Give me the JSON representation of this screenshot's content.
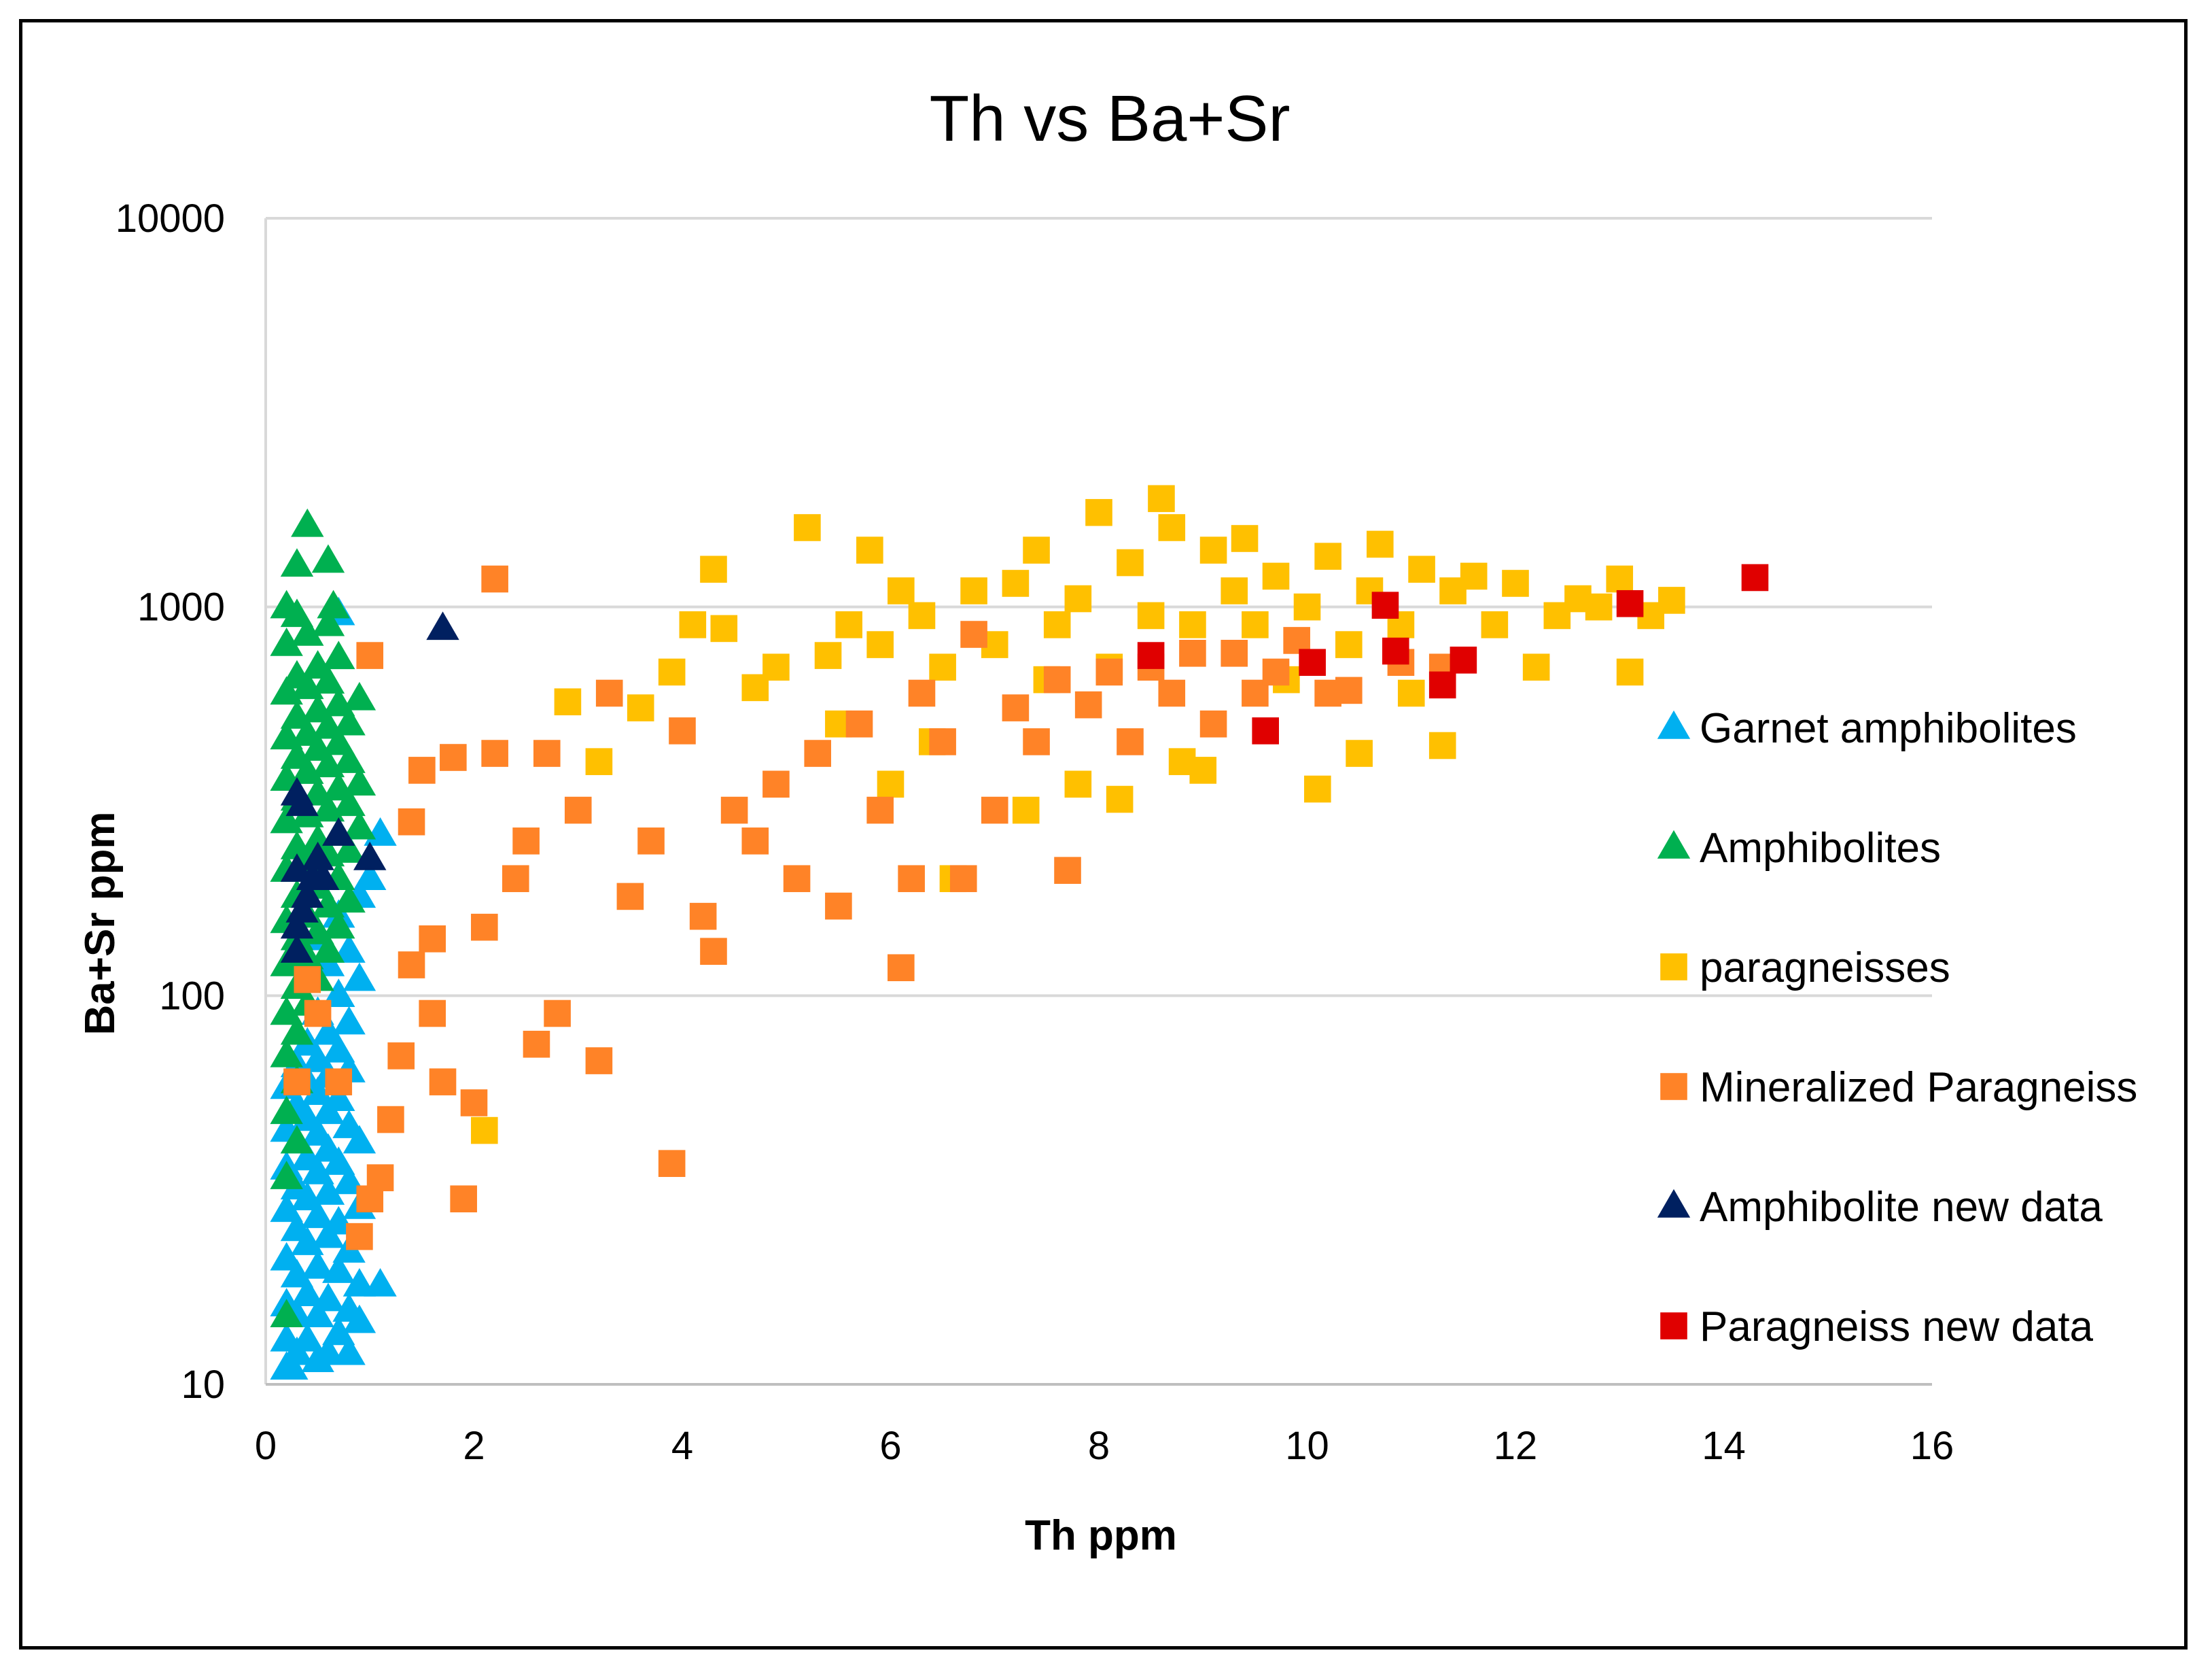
{
  "chart_data": {
    "type": "scatter",
    "title": "Th vs Ba+Sr",
    "xlabel": "Th ppm",
    "ylabel": "Ba+Sr ppm",
    "xlim": [
      0,
      16
    ],
    "ylim": [
      10,
      10000
    ],
    "yscale": "log",
    "x_ticks": [
      "0",
      "2",
      "4",
      "6",
      "8",
      "10",
      "12",
      "14",
      "16"
    ],
    "y_ticks": [
      "10",
      "100",
      "1000",
      "10000"
    ],
    "grid": "horizontal",
    "legend_position": "right",
    "series": [
      {
        "name": "Garnet amphibolites",
        "marker": "triangle",
        "color": "#00B0F0",
        "points": [
          [
            0.2,
            11
          ],
          [
            0.3,
            12
          ],
          [
            0.5,
            11.5
          ],
          [
            0.6,
            12
          ],
          [
            0.8,
            12
          ],
          [
            0.2,
            13
          ],
          [
            0.4,
            13
          ],
          [
            0.7,
            13.5
          ],
          [
            0.9,
            14.5
          ],
          [
            0.3,
            15
          ],
          [
            0.5,
            15
          ],
          [
            0.8,
            15.5
          ],
          [
            0.2,
            16
          ],
          [
            0.6,
            16.5
          ],
          [
            0.4,
            17
          ],
          [
            1.1,
            18
          ],
          [
            0.9,
            18
          ],
          [
            0.3,
            19
          ],
          [
            0.7,
            19.5
          ],
          [
            0.5,
            20
          ],
          [
            0.2,
            21
          ],
          [
            0.8,
            22
          ],
          [
            0.4,
            23
          ],
          [
            0.6,
            24
          ],
          [
            0.3,
            25
          ],
          [
            0.7,
            26
          ],
          [
            0.5,
            27
          ],
          [
            0.2,
            28
          ],
          [
            0.9,
            28.5
          ],
          [
            0.4,
            30
          ],
          [
            0.6,
            31
          ],
          [
            0.3,
            32
          ],
          [
            0.8,
            33
          ],
          [
            0.5,
            35
          ],
          [
            0.2,
            36
          ],
          [
            0.7,
            37
          ],
          [
            0.4,
            38
          ],
          [
            0.6,
            40
          ],
          [
            0.3,
            42
          ],
          [
            0.9,
            42
          ],
          [
            0.5,
            44
          ],
          [
            0.2,
            45
          ],
          [
            0.8,
            46
          ],
          [
            0.4,
            48
          ],
          [
            0.6,
            50
          ],
          [
            0.3,
            52
          ],
          [
            0.7,
            54
          ],
          [
            0.5,
            56
          ],
          [
            0.2,
            58
          ],
          [
            0.4,
            60
          ],
          [
            0.6,
            62
          ],
          [
            0.8,
            64
          ],
          [
            0.3,
            66
          ],
          [
            0.5,
            68
          ],
          [
            0.7,
            72
          ],
          [
            0.4,
            75
          ],
          [
            0.6,
            80
          ],
          [
            0.8,
            85
          ],
          [
            0.5,
            90
          ],
          [
            0.7,
            100
          ],
          [
            0.9,
            110
          ],
          [
            0.6,
            120
          ],
          [
            0.8,
            130
          ],
          [
            0.5,
            140
          ],
          [
            0.7,
            160
          ],
          [
            0.9,
            180
          ],
          [
            1.0,
            200
          ],
          [
            1.1,
            260
          ],
          [
            0.7,
            960
          ],
          [
            0.25,
            11
          ]
        ]
      },
      {
        "name": "Amphibolites",
        "marker": "triangle",
        "color": "#00B050",
        "points": [
          [
            0.2,
            15
          ],
          [
            0.2,
            34
          ],
          [
            0.3,
            42
          ],
          [
            0.2,
            50
          ],
          [
            0.3,
            60
          ],
          [
            0.2,
            70
          ],
          [
            0.3,
            80
          ],
          [
            0.2,
            90
          ],
          [
            0.4,
            95
          ],
          [
            0.3,
            105
          ],
          [
            0.5,
            110
          ],
          [
            0.2,
            120
          ],
          [
            0.4,
            125
          ],
          [
            0.6,
            130
          ],
          [
            0.3,
            140
          ],
          [
            0.5,
            145
          ],
          [
            0.7,
            150
          ],
          [
            0.2,
            155
          ],
          [
            0.4,
            160
          ],
          [
            0.6,
            170
          ],
          [
            0.8,
            175
          ],
          [
            0.3,
            180
          ],
          [
            0.5,
            190
          ],
          [
            0.7,
            200
          ],
          [
            0.2,
            210
          ],
          [
            0.4,
            220
          ],
          [
            0.6,
            230
          ],
          [
            0.8,
            235
          ],
          [
            0.3,
            240
          ],
          [
            0.5,
            250
          ],
          [
            0.7,
            260
          ],
          [
            0.9,
            270
          ],
          [
            0.2,
            280
          ],
          [
            0.4,
            290
          ],
          [
            0.6,
            300
          ],
          [
            0.8,
            310
          ],
          [
            0.3,
            320
          ],
          [
            0.5,
            330
          ],
          [
            0.7,
            340
          ],
          [
            0.9,
            350
          ],
          [
            0.2,
            360
          ],
          [
            0.4,
            375
          ],
          [
            0.6,
            390
          ],
          [
            0.8,
            400
          ],
          [
            0.3,
            410
          ],
          [
            0.5,
            430
          ],
          [
            0.7,
            445
          ],
          [
            0.2,
            460
          ],
          [
            0.4,
            470
          ],
          [
            0.6,
            490
          ],
          [
            0.8,
            500
          ],
          [
            0.3,
            520
          ],
          [
            0.5,
            540
          ],
          [
            0.7,
            560
          ],
          [
            0.9,
            580
          ],
          [
            0.2,
            600
          ],
          [
            0.4,
            620
          ],
          [
            0.6,
            640
          ],
          [
            0.3,
            660
          ],
          [
            0.5,
            700
          ],
          [
            0.7,
            740
          ],
          [
            0.2,
            800
          ],
          [
            0.4,
            850
          ],
          [
            0.6,
            900
          ],
          [
            0.3,
            950
          ],
          [
            0.2,
            1000
          ],
          [
            0.65,
            1000
          ],
          [
            0.3,
            1280
          ],
          [
            0.6,
            1310
          ],
          [
            0.4,
            1620
          ]
        ]
      },
      {
        "name": "paragneisses",
        "marker": "square",
        "color": "#FFC000",
        "points": [
          [
            2.1,
            45
          ],
          [
            2.9,
            570
          ],
          [
            3.2,
            400
          ],
          [
            3.6,
            550
          ],
          [
            3.9,
            680
          ],
          [
            4.1,
            900
          ],
          [
            4.3,
            1250
          ],
          [
            4.4,
            880
          ],
          [
            4.7,
            620
          ],
          [
            4.9,
            700
          ],
          [
            5.2,
            1600
          ],
          [
            5.4,
            750
          ],
          [
            5.6,
            900
          ],
          [
            5.8,
            1400
          ],
          [
            5.9,
            800
          ],
          [
            6.1,
            1100
          ],
          [
            6.3,
            950
          ],
          [
            6.5,
            700
          ],
          [
            6.6,
            200
          ],
          [
            6.8,
            1100
          ],
          [
            7.0,
            800
          ],
          [
            7.2,
            1150
          ],
          [
            7.4,
            1400
          ],
          [
            7.5,
            650
          ],
          [
            7.6,
            900
          ],
          [
            7.8,
            1050
          ],
          [
            8.0,
            1750
          ],
          [
            8.1,
            700
          ],
          [
            8.3,
            1300
          ],
          [
            8.5,
            950
          ],
          [
            8.6,
            1900
          ],
          [
            8.7,
            1600
          ],
          [
            8.9,
            900
          ],
          [
            9.1,
            1400
          ],
          [
            9.3,
            1100
          ],
          [
            9.4,
            1500
          ],
          [
            9.5,
            900
          ],
          [
            9.7,
            1200
          ],
          [
            9.8,
            650
          ],
          [
            10.0,
            1000
          ],
          [
            10.1,
            340
          ],
          [
            10.2,
            1350
          ],
          [
            10.4,
            800
          ],
          [
            10.5,
            420
          ],
          [
            10.6,
            1100
          ],
          [
            10.7,
            1450
          ],
          [
            10.9,
            900
          ],
          [
            11.0,
            600
          ],
          [
            11.1,
            1250
          ],
          [
            11.3,
            440
          ],
          [
            11.4,
            1100
          ],
          [
            11.6,
            1200
          ],
          [
            11.8,
            900
          ],
          [
            12.0,
            1150
          ],
          [
            12.2,
            700
          ],
          [
            12.4,
            950
          ],
          [
            12.6,
            1050
          ],
          [
            12.8,
            1000
          ],
          [
            13.0,
            1180
          ],
          [
            13.1,
            680
          ],
          [
            13.3,
            950
          ],
          [
            13.5,
            1040
          ],
          [
            7.3,
            300
          ],
          [
            7.8,
            350
          ],
          [
            8.2,
            320
          ],
          [
            8.8,
            400
          ],
          [
            9.0,
            380
          ],
          [
            6.0,
            350
          ],
          [
            6.4,
            450
          ],
          [
            5.5,
            500
          ]
        ]
      },
      {
        "name": "Mineralized Paragneiss",
        "marker": "square",
        "color": "#FF8327",
        "points": [
          [
            0.3,
            60
          ],
          [
            0.4,
            110
          ],
          [
            0.5,
            90
          ],
          [
            0.7,
            60
          ],
          [
            0.9,
            24
          ],
          [
            1.0,
            30
          ],
          [
            1.1,
            34
          ],
          [
            1.0,
            750
          ],
          [
            1.2,
            48
          ],
          [
            1.3,
            70
          ],
          [
            1.4,
            120
          ],
          [
            1.4,
            280
          ],
          [
            1.5,
            380
          ],
          [
            1.6,
            90
          ],
          [
            1.7,
            60
          ],
          [
            1.8,
            410
          ],
          [
            1.9,
            30
          ],
          [
            2.0,
            53
          ],
          [
            2.1,
            150
          ],
          [
            2.2,
            1180
          ],
          [
            2.2,
            420
          ],
          [
            2.4,
            200
          ],
          [
            2.6,
            75
          ],
          [
            2.7,
            420
          ],
          [
            2.8,
            90
          ],
          [
            3.0,
            300
          ],
          [
            3.2,
            68
          ],
          [
            3.3,
            600
          ],
          [
            3.5,
            180
          ],
          [
            3.7,
            250
          ],
          [
            3.9,
            37
          ],
          [
            4.0,
            480
          ],
          [
            4.2,
            160
          ],
          [
            4.3,
            130
          ],
          [
            4.5,
            300
          ],
          [
            4.7,
            250
          ],
          [
            4.9,
            350
          ],
          [
            5.1,
            200
          ],
          [
            5.3,
            420
          ],
          [
            5.5,
            170
          ],
          [
            5.7,
            500
          ],
          [
            5.9,
            300
          ],
          [
            6.1,
            118
          ],
          [
            6.2,
            200
          ],
          [
            6.3,
            600
          ],
          [
            6.5,
            450
          ],
          [
            6.7,
            200
          ],
          [
            6.8,
            850
          ],
          [
            7.0,
            300
          ],
          [
            7.2,
            550
          ],
          [
            7.4,
            450
          ],
          [
            7.6,
            650
          ],
          [
            7.7,
            210
          ],
          [
            7.9,
            560
          ],
          [
            8.1,
            680
          ],
          [
            8.3,
            450
          ],
          [
            8.5,
            700
          ],
          [
            8.7,
            600
          ],
          [
            8.9,
            760
          ],
          [
            9.1,
            500
          ],
          [
            9.3,
            760
          ],
          [
            9.5,
            600
          ],
          [
            9.7,
            680
          ],
          [
            9.9,
            820
          ],
          [
            10.2,
            600
          ],
          [
            10.4,
            610
          ],
          [
            10.9,
            720
          ],
          [
            11.3,
            700
          ],
          [
            1.6,
            140
          ],
          [
            2.5,
            250
          ]
        ]
      },
      {
        "name": "Amphibolite new data",
        "marker": "triangle",
        "color": "#002060",
        "points": [
          [
            0.3,
            130
          ],
          [
            0.3,
            150
          ],
          [
            0.3,
            210
          ],
          [
            0.35,
            165
          ],
          [
            0.4,
            180
          ],
          [
            0.45,
            200
          ],
          [
            0.5,
            225
          ],
          [
            0.55,
            200
          ],
          [
            0.3,
            330
          ],
          [
            0.35,
            310
          ],
          [
            0.7,
            260
          ],
          [
            1.0,
            225
          ],
          [
            1.7,
            880
          ]
        ]
      },
      {
        "name": "Paragneiss new data",
        "marker": "square",
        "color": "#E00000",
        "points": [
          [
            8.5,
            750
          ],
          [
            9.6,
            480
          ],
          [
            10.05,
            720
          ],
          [
            10.75,
            1010
          ],
          [
            10.85,
            770
          ],
          [
            11.3,
            630
          ],
          [
            11.5,
            730
          ],
          [
            13.1,
            1020
          ],
          [
            14.3,
            1190
          ]
        ]
      }
    ]
  }
}
